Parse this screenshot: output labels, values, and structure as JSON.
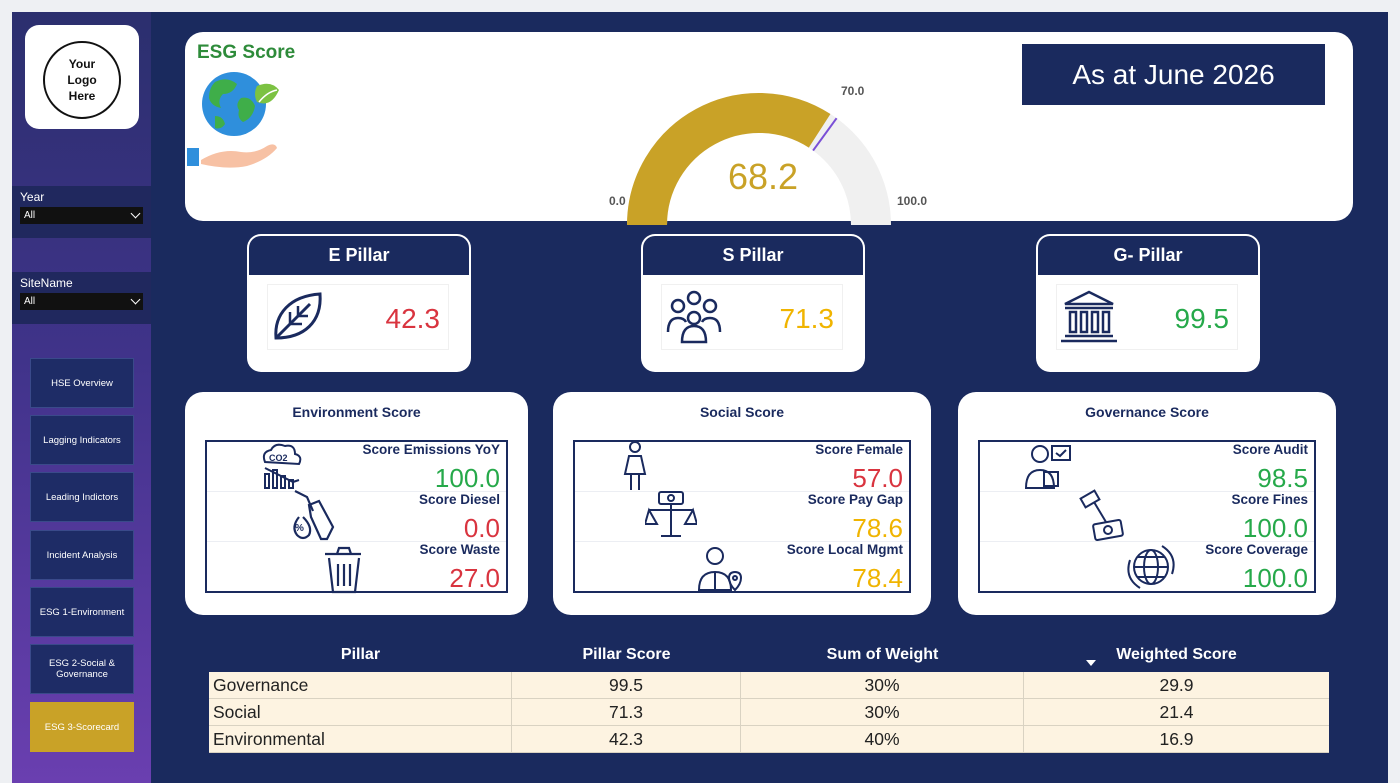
{
  "sidebar": {
    "logo_text": "Your Logo Here",
    "slicers": [
      {
        "label": "Year",
        "value": "All"
      },
      {
        "label": "SiteName",
        "value": "All"
      }
    ],
    "nav": [
      {
        "label": "HSE Overview",
        "active": false
      },
      {
        "label": "Lagging Indicators",
        "active": false
      },
      {
        "label": "Leading Indictors",
        "active": false
      },
      {
        "label": "Incident Analysis",
        "active": false
      },
      {
        "label": "ESG 1-Environment",
        "active": false
      },
      {
        "label": "ESG 2-Social & Governance",
        "active": false
      },
      {
        "label": "ESG 3-Scorecard",
        "active": true
      }
    ]
  },
  "header": {
    "title": "ESG Score",
    "as_at": "As at June 2026",
    "gauge": {
      "value": "68.2",
      "min": "0.0",
      "max": "100.0",
      "target": "70.0",
      "fraction": 0.682,
      "target_fraction": 0.7
    }
  },
  "pillars": [
    {
      "label": "E Pillar",
      "value": "42.3",
      "icon": "leaf-icon"
    },
    {
      "label": "S Pillar",
      "value": "71.3",
      "icon": "people-icon"
    },
    {
      "label": "G- Pillar",
      "value": "99.5",
      "icon": "bank-icon"
    }
  ],
  "score_cards": {
    "environment": {
      "title": "Environment Score",
      "rows": [
        {
          "label": "Score Emissions YoY",
          "value": "100.0"
        },
        {
          "label": "Score Diesel",
          "value": "0.0"
        },
        {
          "label": "Score Waste",
          "value": "27.0"
        }
      ]
    },
    "social": {
      "title": "Social Score",
      "rows": [
        {
          "label": "Score Female",
          "value": "57.0"
        },
        {
          "label": "Score Pay Gap",
          "value": "78.6"
        },
        {
          "label": "Score Local Mgmt",
          "value": "78.4"
        }
      ]
    },
    "governance": {
      "title": "Governance Score",
      "rows": [
        {
          "label": "Score Audit",
          "value": "98.5"
        },
        {
          "label": "Score Fines",
          "value": "100.0"
        },
        {
          "label": "Score Coverage",
          "value": "100.0"
        }
      ]
    }
  },
  "table": {
    "headers": [
      "Pillar",
      "Pillar Score",
      "Sum of Weight",
      "Weighted Score"
    ],
    "rows": [
      [
        "Governance",
        "99.5",
        "30%",
        "29.9"
      ],
      [
        "Social",
        "71.3",
        "30%",
        "21.4"
      ],
      [
        "Environmental",
        "42.3",
        "40%",
        "16.9"
      ]
    ]
  },
  "colors": {
    "gauge_fill": "#c9a227",
    "gauge_track": "#f0f0f0",
    "target_line": "#7a4fd6",
    "red": "#d9343f",
    "green": "#26a94a",
    "yellow": "#f0b400"
  }
}
